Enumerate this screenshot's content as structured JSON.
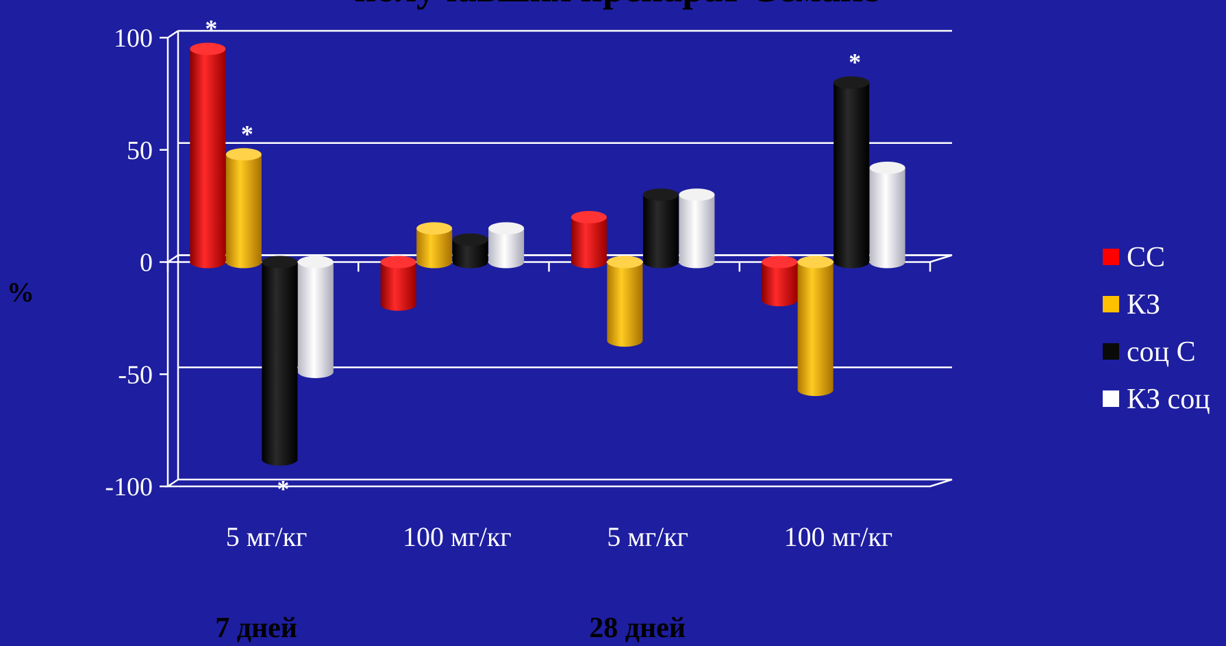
{
  "chart_data": {
    "type": "bar",
    "title": "получавших препарат Семакс",
    "ylabel": "%",
    "ylim": [
      -100,
      100
    ],
    "yticks": [
      100,
      50,
      0,
      -50,
      -100
    ],
    "grid": true,
    "legend_position": "right",
    "categories": [
      "5 мг/кг",
      "100 мг/кг",
      "5 мг/кг",
      "100 мг/кг"
    ],
    "groups": [
      {
        "label": "7 дней",
        "categories": [
          0,
          1
        ]
      },
      {
        "label": "28 дней",
        "categories": [
          2,
          3
        ]
      }
    ],
    "series": [
      {
        "name": "СС",
        "color": "#ff0000",
        "values": [
          95,
          -19,
          20,
          -17
        ]
      },
      {
        "name": "КЗ",
        "color": "#ffc000",
        "values": [
          48,
          15,
          -35,
          -57
        ]
      },
      {
        "name": "соц С",
        "color": "#0a0a0a",
        "values": [
          -88,
          10,
          30,
          80
        ]
      },
      {
        "name": "КЗ соц",
        "color": "#ffffff",
        "values": [
          -49,
          15,
          30,
          42
        ]
      }
    ],
    "annotations": [
      {
        "text": "*",
        "series": 0,
        "category": 0,
        "side": "top"
      },
      {
        "text": "*",
        "series": 1,
        "category": 0,
        "side": "top"
      },
      {
        "text": "*",
        "series": 2,
        "category": 0,
        "side": "bottom"
      },
      {
        "text": "*",
        "series": 2,
        "category": 3,
        "side": "top"
      }
    ]
  }
}
